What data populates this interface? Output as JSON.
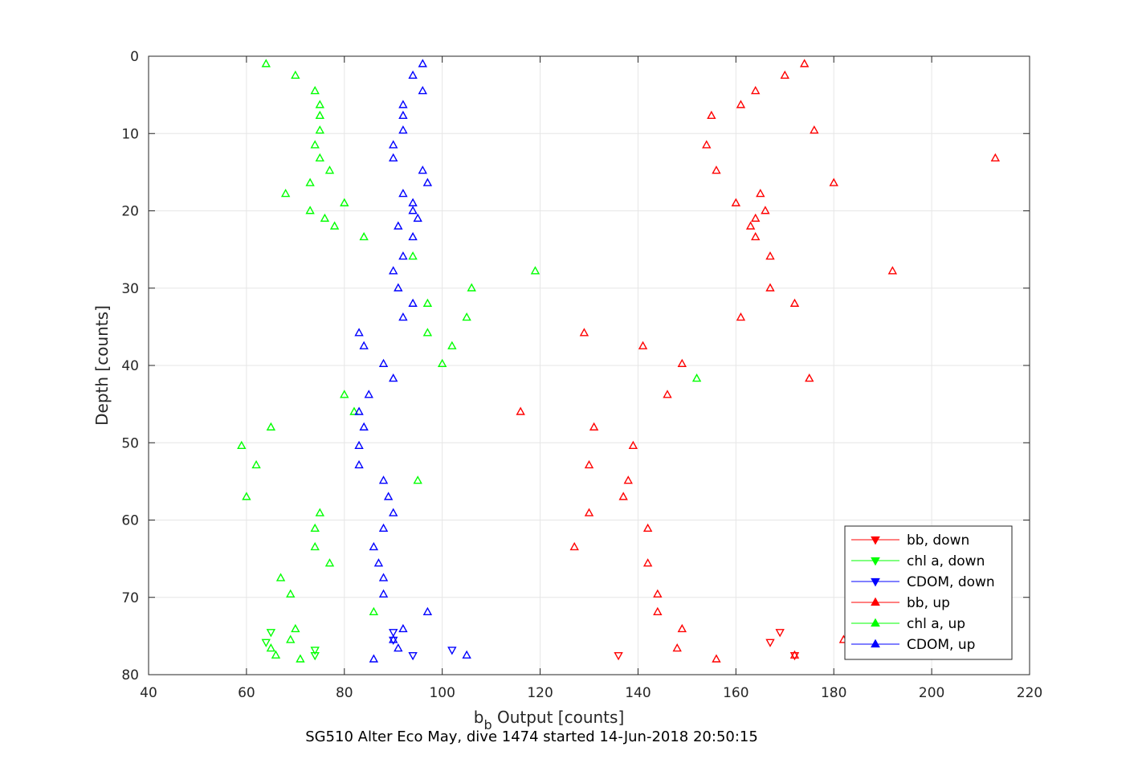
{
  "chart_data": {
    "type": "scatter",
    "xlabel_main": "b",
    "xlabel_sub": "b",
    "xlabel_rest": " Output [counts]",
    "ylabel": "Depth [counts]",
    "caption": "SG510 Alter Eco May, dive 1474 started 14-Jun-2018 20:50:15",
    "xlim": [
      40,
      220
    ],
    "ylim": [
      0,
      80
    ],
    "y_reversed": true,
    "grid": true,
    "legend_position": "bottom-right",
    "xticks": [
      "40",
      "60",
      "80",
      "100",
      "120",
      "140",
      "160",
      "180",
      "200",
      "220"
    ],
    "yticks": [
      "0",
      "10",
      "20",
      "30",
      "40",
      "50",
      "60",
      "70",
      "80"
    ],
    "series": [
      {
        "name": "bb, down",
        "color": "#ff0000",
        "marker": "triangle-down",
        "points": [
          [
            136,
            77.5
          ],
          [
            167,
            75.8
          ],
          [
            169,
            74.5
          ],
          [
            172,
            77.5
          ]
        ]
      },
      {
        "name": "chl a, down",
        "color": "#00ff00",
        "marker": "triangle-down",
        "points": [
          [
            64,
            75.8
          ],
          [
            65,
            74.5
          ],
          [
            74,
            77.5
          ],
          [
            74,
            76.8
          ]
        ]
      },
      {
        "name": "CDOM, down",
        "color": "#0000ff",
        "marker": "triangle-down",
        "points": [
          [
            90,
            75.5
          ],
          [
            90,
            74.5
          ],
          [
            94,
            77.5
          ],
          [
            102,
            76.8
          ]
        ]
      },
      {
        "name": "bb, up",
        "color": "#ff0000",
        "marker": "triangle-up",
        "points": [
          [
            174,
            1
          ],
          [
            170,
            2.5
          ],
          [
            164,
            4.5
          ],
          [
            161,
            6.3
          ],
          [
            155,
            7.7
          ],
          [
            176,
            9.6
          ],
          [
            154,
            11.5
          ],
          [
            213,
            13.2
          ],
          [
            156,
            14.8
          ],
          [
            180,
            16.4
          ],
          [
            165,
            17.8
          ],
          [
            160,
            19
          ],
          [
            166,
            20
          ],
          [
            164,
            21
          ],
          [
            163,
            22
          ],
          [
            164,
            23.4
          ],
          [
            167,
            25.9
          ],
          [
            192,
            27.8
          ],
          [
            167,
            30
          ],
          [
            172,
            32
          ],
          [
            161,
            33.8
          ],
          [
            129,
            35.8
          ],
          [
            141,
            37.5
          ],
          [
            149,
            39.8
          ],
          [
            175,
            41.7
          ],
          [
            146,
            43.8
          ],
          [
            116,
            46
          ],
          [
            131,
            48
          ],
          [
            139,
            50.4
          ],
          [
            130,
            52.9
          ],
          [
            138,
            54.9
          ],
          [
            137,
            57
          ],
          [
            130,
            59.1
          ],
          [
            142,
            61.1
          ],
          [
            127,
            63.5
          ],
          [
            142,
            65.6
          ],
          [
            144,
            69.6
          ],
          [
            144,
            71.9
          ],
          [
            149,
            74.1
          ],
          [
            182,
            75.5
          ],
          [
            148,
            76.6
          ],
          [
            172,
            77.5
          ],
          [
            156,
            78
          ]
        ]
      },
      {
        "name": "chl a, up",
        "color": "#00ff00",
        "marker": "triangle-up",
        "points": [
          [
            64,
            1
          ],
          [
            70,
            2.5
          ],
          [
            74,
            4.5
          ],
          [
            75,
            6.3
          ],
          [
            75,
            7.7
          ],
          [
            75,
            9.6
          ],
          [
            74,
            11.5
          ],
          [
            75,
            13.2
          ],
          [
            77,
            14.8
          ],
          [
            73,
            16.4
          ],
          [
            68,
            17.8
          ],
          [
            80,
            19
          ],
          [
            73,
            20
          ],
          [
            76,
            21
          ],
          [
            78,
            22
          ],
          [
            84,
            23.4
          ],
          [
            94,
            25.9
          ],
          [
            119,
            27.8
          ],
          [
            106,
            30
          ],
          [
            97,
            32
          ],
          [
            105,
            33.8
          ],
          [
            97,
            35.8
          ],
          [
            102,
            37.5
          ],
          [
            100,
            39.8
          ],
          [
            152,
            41.7
          ],
          [
            80,
            43.8
          ],
          [
            82,
            46
          ],
          [
            65,
            48
          ],
          [
            59,
            50.4
          ],
          [
            62,
            52.9
          ],
          [
            95,
            54.9
          ],
          [
            60,
            57
          ],
          [
            75,
            59.1
          ],
          [
            74,
            61.1
          ],
          [
            74,
            63.5
          ],
          [
            77,
            65.6
          ],
          [
            67,
            67.5
          ],
          [
            69,
            69.6
          ],
          [
            86,
            71.9
          ],
          [
            70,
            74.1
          ],
          [
            69,
            75.5
          ],
          [
            65,
            76.6
          ],
          [
            66,
            77.5
          ],
          [
            71,
            78
          ]
        ]
      },
      {
        "name": "CDOM, up",
        "color": "#0000ff",
        "marker": "triangle-up",
        "points": [
          [
            96,
            1
          ],
          [
            94,
            2.5
          ],
          [
            96,
            4.5
          ],
          [
            92,
            6.3
          ],
          [
            92,
            7.7
          ],
          [
            92,
            9.6
          ],
          [
            90,
            11.5
          ],
          [
            90,
            13.2
          ],
          [
            96,
            14.8
          ],
          [
            97,
            16.4
          ],
          [
            92,
            17.8
          ],
          [
            94,
            19
          ],
          [
            94,
            20
          ],
          [
            95,
            21
          ],
          [
            91,
            22
          ],
          [
            94,
            23.4
          ],
          [
            92,
            25.9
          ],
          [
            90,
            27.8
          ],
          [
            91,
            30
          ],
          [
            94,
            32
          ],
          [
            92,
            33.8
          ],
          [
            83,
            35.8
          ],
          [
            84,
            37.5
          ],
          [
            88,
            39.8
          ],
          [
            90,
            41.7
          ],
          [
            85,
            43.8
          ],
          [
            83,
            46
          ],
          [
            84,
            48
          ],
          [
            83,
            50.4
          ],
          [
            83,
            52.9
          ],
          [
            88,
            54.9
          ],
          [
            89,
            57
          ],
          [
            90,
            59.1
          ],
          [
            88,
            61.1
          ],
          [
            86,
            63.5
          ],
          [
            87,
            65.6
          ],
          [
            88,
            67.5
          ],
          [
            88,
            69.6
          ],
          [
            97,
            71.9
          ],
          [
            92,
            74.1
          ],
          [
            90,
            75.5
          ],
          [
            91,
            76.6
          ],
          [
            105,
            77.5
          ],
          [
            86,
            78
          ]
        ]
      }
    ]
  }
}
